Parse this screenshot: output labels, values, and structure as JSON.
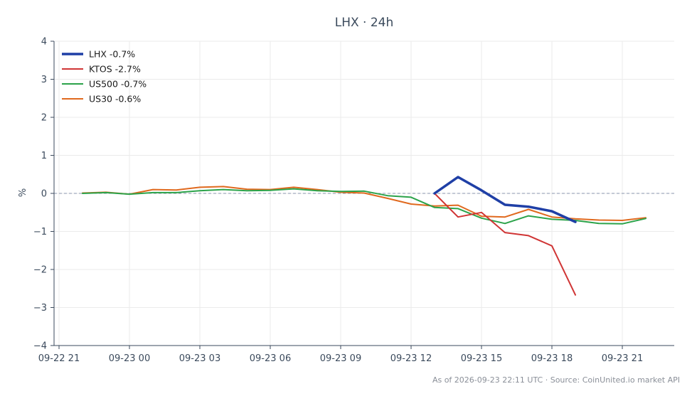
{
  "chart_data": {
    "type": "line",
    "title": "LHX · 24h",
    "xlabel": "",
    "ylabel": "%",
    "ylim": [
      -4,
      4
    ],
    "xlim": [
      "2026-09-22 21:00",
      "2026-09-23 23:15"
    ],
    "grid": true,
    "zero_line": 0,
    "legend_position": "top-left",
    "x_ticks": [
      "09-22 21",
      "09-23 00",
      "09-23 03",
      "09-23 06",
      "09-23 09",
      "09-23 12",
      "09-23 15",
      "09-23 18",
      "09-23 21"
    ],
    "y_ticks": [
      "4",
      "3",
      "2",
      "1",
      "0",
      "−1",
      "−2",
      "−3",
      "−4"
    ],
    "series": [
      {
        "name": "LHX -0.7%",
        "color": "#1f3fa6",
        "x": [
          "2026-09-23 13:00",
          "2026-09-23 14:00",
          "2026-09-23 15:00",
          "2026-09-23 16:00",
          "2026-09-23 17:00",
          "2026-09-23 18:00",
          "2026-09-23 19:00"
        ],
        "values": [
          0.0,
          0.43,
          0.08,
          -0.3,
          -0.35,
          -0.47,
          -0.75
        ]
      },
      {
        "name": "KTOS -2.7%",
        "color": "#d03535",
        "x": [
          "2026-09-23 13:00",
          "2026-09-23 14:00",
          "2026-09-23 15:00",
          "2026-09-23 16:00",
          "2026-09-23 17:00",
          "2026-09-23 18:00",
          "2026-09-23 19:00"
        ],
        "values": [
          0.0,
          -0.62,
          -0.5,
          -1.03,
          -1.11,
          -1.38,
          -2.67
        ]
      },
      {
        "name": "US500 -0.7%",
        "color": "#2ca34a",
        "x": [
          "2026-09-22 22:00",
          "2026-09-22 23:00",
          "2026-09-23 00:00",
          "2026-09-23 01:00",
          "2026-09-23 02:00",
          "2026-09-23 03:00",
          "2026-09-23 04:00",
          "2026-09-23 05:00",
          "2026-09-23 06:00",
          "2026-09-23 07:00",
          "2026-09-23 08:00",
          "2026-09-23 09:00",
          "2026-09-23 10:00",
          "2026-09-23 11:00",
          "2026-09-23 12:00",
          "2026-09-23 13:00",
          "2026-09-23 14:00",
          "2026-09-23 15:00",
          "2026-09-23 16:00",
          "2026-09-23 17:00",
          "2026-09-23 18:00",
          "2026-09-23 19:00",
          "2026-09-23 20:00",
          "2026-09-23 21:00",
          "2026-09-23 22:00"
        ],
        "values": [
          0.0,
          0.02,
          -0.02,
          0.02,
          0.02,
          0.07,
          0.1,
          0.07,
          0.08,
          0.12,
          0.07,
          0.05,
          0.06,
          -0.06,
          -0.1,
          -0.37,
          -0.4,
          -0.65,
          -0.79,
          -0.59,
          -0.68,
          -0.71,
          -0.79,
          -0.8,
          -0.66
        ]
      },
      {
        "name": "US30 -0.6%",
        "color": "#e0691e",
        "x": [
          "2026-09-22 22:00",
          "2026-09-22 23:00",
          "2026-09-23 00:00",
          "2026-09-23 01:00",
          "2026-09-23 02:00",
          "2026-09-23 03:00",
          "2026-09-23 04:00",
          "2026-09-23 05:00",
          "2026-09-23 06:00",
          "2026-09-23 07:00",
          "2026-09-23 08:00",
          "2026-09-23 09:00",
          "2026-09-23 10:00",
          "2026-09-23 11:00",
          "2026-09-23 12:00",
          "2026-09-23 13:00",
          "2026-09-23 14:00",
          "2026-09-23 15:00",
          "2026-09-23 16:00",
          "2026-09-23 17:00",
          "2026-09-23 18:00",
          "2026-09-23 19:00",
          "2026-09-23 20:00",
          "2026-09-23 21:00",
          "2026-09-23 22:00"
        ],
        "values": [
          0.01,
          0.03,
          -0.02,
          0.1,
          0.09,
          0.16,
          0.18,
          0.11,
          0.1,
          0.16,
          0.1,
          0.03,
          0.01,
          -0.13,
          -0.28,
          -0.33,
          -0.31,
          -0.6,
          -0.62,
          -0.42,
          -0.62,
          -0.67,
          -0.7,
          -0.71,
          -0.64
        ]
      }
    ]
  },
  "footer": {
    "text": "As of 2026-09-23 22:11 UTC · Source: CoinUnited.io market API"
  }
}
